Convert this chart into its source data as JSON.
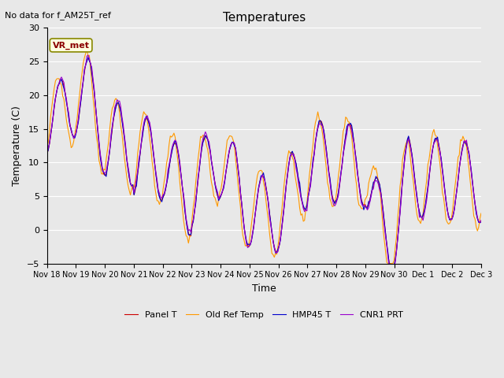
{
  "title": "Temperatures",
  "xlabel": "Time",
  "ylabel": "Temperature (C)",
  "ylim": [
    -5,
    30
  ],
  "background_color": "#e8e8e8",
  "annotation_text": "No data for f_AM25T_ref",
  "annotation_label": "VR_met",
  "x_tick_labels": [
    "Nov 18",
    "Nov 19",
    "Nov 20",
    "Nov 21",
    "Nov 22",
    "Nov 23",
    "Nov 24",
    "Nov 25",
    "Nov 26",
    "Nov 27",
    "Nov 28",
    "Nov 29",
    "Nov 30",
    "Dec 1",
    "Dec 2",
    "Dec 3"
  ],
  "legend_entries": [
    "Panel T",
    "Old Ref Temp",
    "HMP45 T",
    "CNR1 PRT"
  ],
  "line_colors": [
    "#cc0000",
    "#ff9900",
    "#0000cc",
    "#9900cc"
  ],
  "grid_color": "#ffffff",
  "yticks": [
    -5,
    0,
    5,
    10,
    15,
    20,
    25,
    30
  ]
}
